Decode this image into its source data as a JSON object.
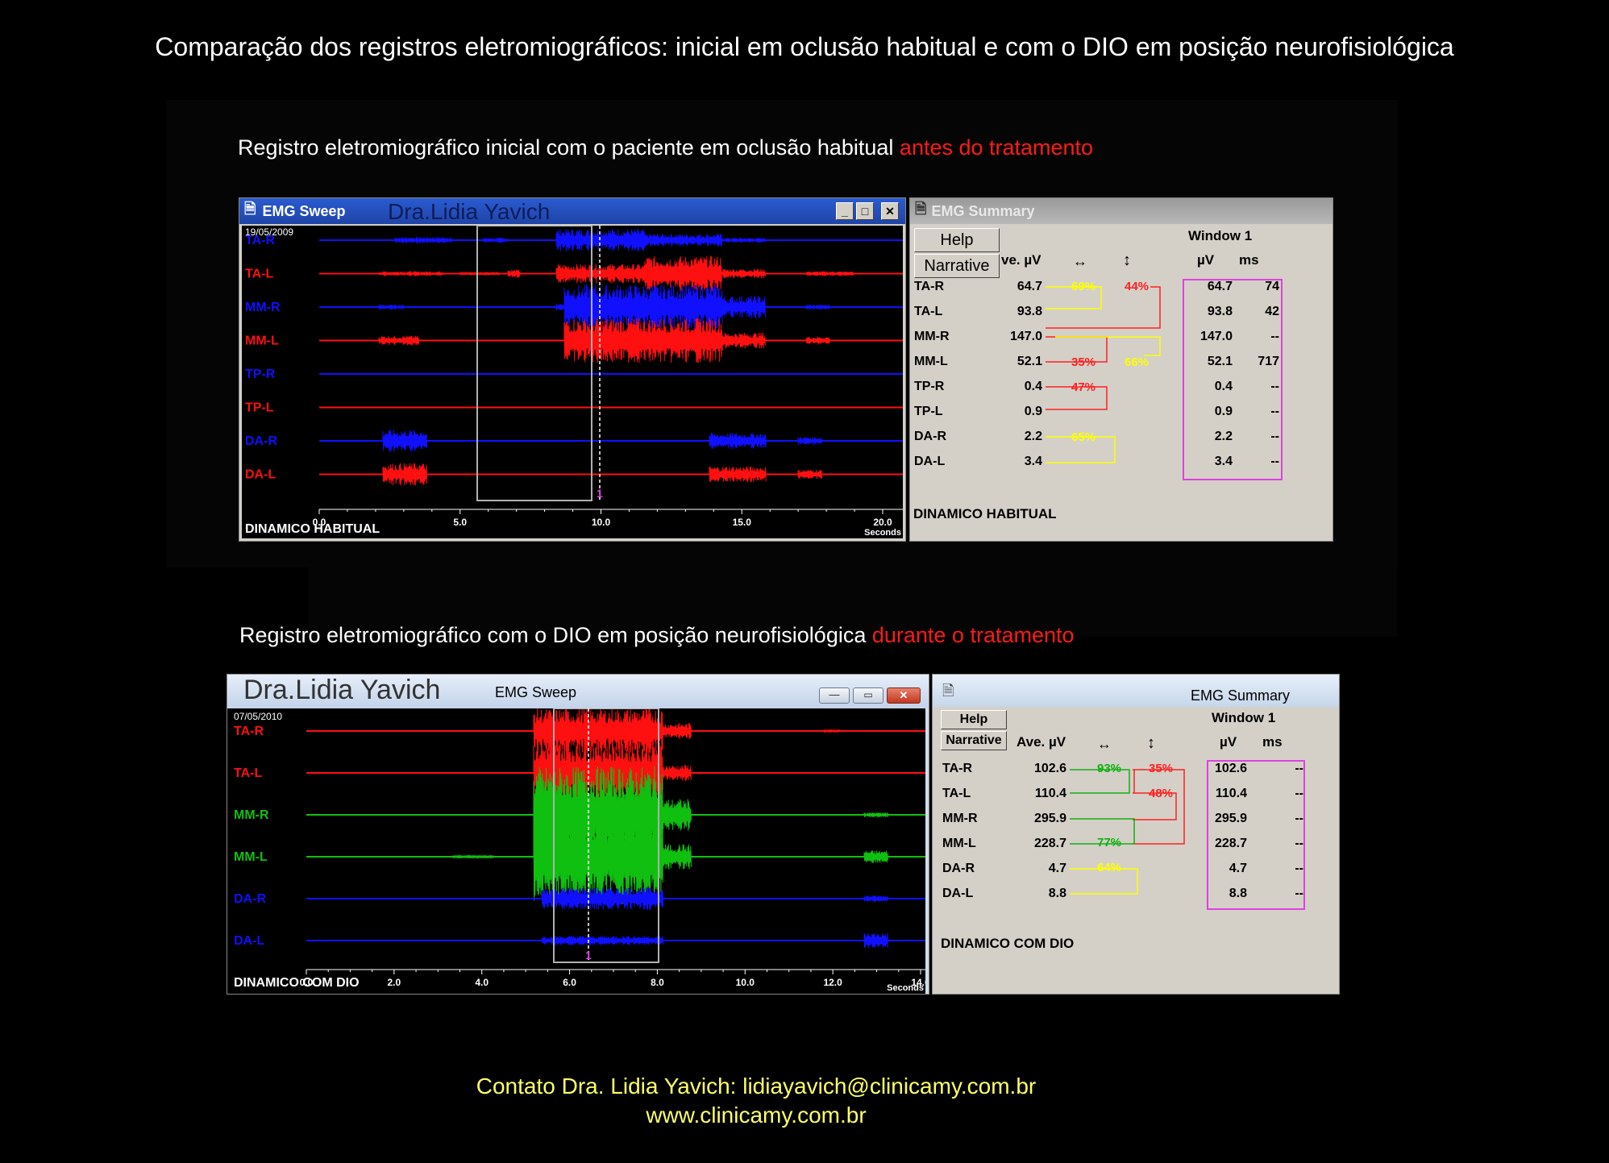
{
  "page_title": "Comparação dos registros eletromiográficos: inicial em oclusão habitual e  com o  DIO em posição neurofisiológica",
  "section1": {
    "caption_main": "Registro eletromiográfico inicial com o paciente em oclusão habitual ",
    "caption_highlight": "antes do tratamento",
    "sweep": {
      "title": "EMG Sweep",
      "watermark": "Dra.Lidia Yavich",
      "date": "19/05/2009",
      "mode": "DINAMICO HABITUAL",
      "channels": [
        {
          "name": "TA-R",
          "color": "#1010ff"
        },
        {
          "name": "TA-L",
          "color": "#ff1010"
        },
        {
          "name": "MM-R",
          "color": "#1010ff"
        },
        {
          "name": "MM-L",
          "color": "#ff1010"
        },
        {
          "name": "TP-R",
          "color": "#1010ff"
        },
        {
          "name": "TP-L",
          "color": "#ff1010"
        },
        {
          "name": "DA-R",
          "color": "#1010ff"
        },
        {
          "name": "DA-L",
          "color": "#ff1010"
        }
      ],
      "x_ticks": [
        "0.0",
        "5.0",
        "10.0",
        "15.0",
        "20.0"
      ],
      "x_unit": "Seconds",
      "window_label": "1"
    },
    "summary": {
      "title": "EMG Summary",
      "help": "Help",
      "narrative": "Narrative",
      "ave_header": "ve. µV",
      "window_header": "Window 1",
      "uv_header": "µV",
      "ms_header": "ms",
      "rows": [
        {
          "name": "TA-R",
          "ave": "64.7",
          "uv": "64.7",
          "ms": "74"
        },
        {
          "name": "TA-L",
          "ave": "93.8",
          "uv": "93.8",
          "ms": "42"
        },
        {
          "name": "MM-R",
          "ave": "147.0",
          "uv": "147.0",
          "ms": "--"
        },
        {
          "name": "MM-L",
          "ave": "52.1",
          "uv": "52.1",
          "ms": "717"
        },
        {
          "name": "TP-R",
          "ave": "0.4",
          "uv": "0.4",
          "ms": "--"
        },
        {
          "name": "TP-L",
          "ave": "0.9",
          "uv": "0.9",
          "ms": "--"
        },
        {
          "name": "DA-R",
          "ave": "2.2",
          "uv": "2.2",
          "ms": "--"
        },
        {
          "name": "DA-L",
          "ave": "3.4",
          "uv": "3.4",
          "ms": "--"
        }
      ],
      "pct_ta_sym": "69%",
      "pct_ta_tors": "44%",
      "pct_mm_sym": "35%",
      "pct_mm_tors": "66%",
      "pct_tp_sym": "47%",
      "pct_da_sym": "65%",
      "mode": "DINAMICO HABITUAL"
    }
  },
  "section2": {
    "caption_main": "Registro eletromiográfico com o DIO em posição neurofisiológica ",
    "caption_highlight": "durante o tratamento",
    "sweep": {
      "title": "EMG Sweep",
      "watermark": "Dra.Lidia Yavich",
      "date": "07/05/2010",
      "mode": "DINAMICO COM DIO",
      "channels": [
        {
          "name": "TA-R",
          "color": "#ff1010"
        },
        {
          "name": "TA-L",
          "color": "#ff1010"
        },
        {
          "name": "MM-R",
          "color": "#10c010"
        },
        {
          "name": "MM-L",
          "color": "#10c010"
        },
        {
          "name": "DA-R",
          "color": "#1010ff"
        },
        {
          "name": "DA-L",
          "color": "#1010ff"
        }
      ],
      "x_ticks": [
        "0.0",
        "2.0",
        "4.0",
        "6.0",
        "8.0",
        "10.0",
        "12.0",
        "14.0"
      ],
      "x_unit": "Seconds",
      "window_label": "1"
    },
    "summary": {
      "title": "EMG Summary",
      "help": "Help",
      "narrative": "Narrative",
      "ave_header": "Ave. µV",
      "window_header": "Window 1",
      "uv_header": "µV",
      "ms_header": "ms",
      "rows": [
        {
          "name": "TA-R",
          "ave": "102.6",
          "uv": "102.6",
          "ms": "--"
        },
        {
          "name": "TA-L",
          "ave": "110.4",
          "uv": "110.4",
          "ms": "--"
        },
        {
          "name": "MM-R",
          "ave": "295.9",
          "uv": "295.9",
          "ms": "--"
        },
        {
          "name": "MM-L",
          "ave": "228.7",
          "uv": "228.7",
          "ms": "--"
        },
        {
          "name": "DA-R",
          "ave": "4.7",
          "uv": "4.7",
          "ms": "--"
        },
        {
          "name": "DA-L",
          "ave": "8.8",
          "uv": "8.8",
          "ms": "--"
        }
      ],
      "pct_ta_sym": "93%",
      "pct_ta_tors": "35%",
      "pct_tors2": "48%",
      "pct_mm_sym": "77%",
      "pct_da_sym": "64%",
      "mode": "DINAMICO COM DIO"
    }
  },
  "footer": {
    "line1": "Contato  Dra. Lidia Yavich:  lidiayavich@clinicamy.com.br",
    "line2": "www.clinicamy.com.br"
  },
  "colors": {
    "highlight": "#ff1a1a",
    "footer": "#ffff66",
    "window_box": "#e040e0"
  }
}
